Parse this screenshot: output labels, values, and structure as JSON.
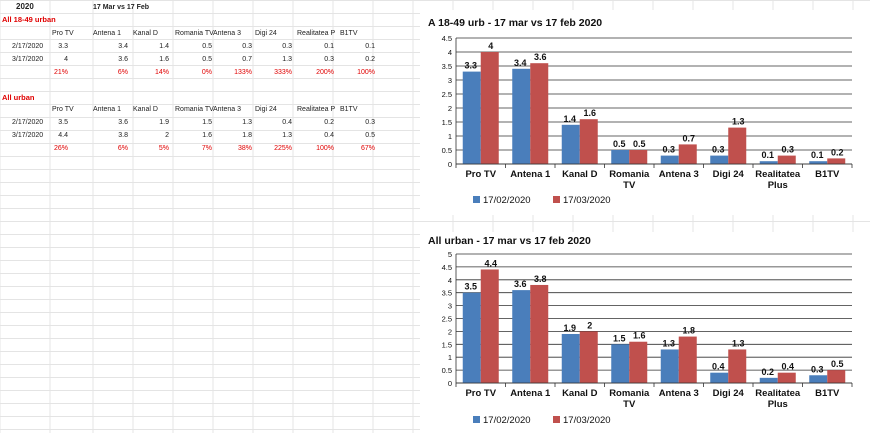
{
  "sheet": {
    "year": "2020",
    "period": "17 Mar vs 17 Feb",
    "sections": [
      {
        "title": "All 18-49 urban",
        "headers": [
          "Pro TV",
          "Antena 1",
          "Kanal D",
          "Romania TV",
          "Antena 3",
          "Digi 24",
          "Realitatea P",
          "B1TV"
        ],
        "rows": [
          {
            "date": "2/17/2020",
            "values": [
              "3.3",
              "3.4",
              "1.4",
              "0.5",
              "0.3",
              "0.3",
              "0.1",
              "0.1"
            ]
          },
          {
            "date": "3/17/2020",
            "values": [
              "4",
              "3.6",
              "1.6",
              "0.5",
              "0.7",
              "1.3",
              "0.3",
              "0.2"
            ]
          }
        ],
        "pct": [
          "21%",
          "6%",
          "14%",
          "0%",
          "133%",
          "333%",
          "200%",
          "100%"
        ]
      },
      {
        "title": "All urban",
        "headers": [
          "Pro TV",
          "Antena 1",
          "Kanal D",
          "Romania TV",
          "Antena 3",
          "Digi 24",
          "Realitatea P",
          "B1TV"
        ],
        "rows": [
          {
            "date": "2/17/2020",
            "values": [
              "3.5",
              "3.6",
              "1.9",
              "1.5",
              "1.3",
              "0.4",
              "0.2",
              "0.3"
            ]
          },
          {
            "date": "3/17/2020",
            "values": [
              "4.4",
              "3.8",
              "2",
              "1.6",
              "1.8",
              "1.3",
              "0.4",
              "0.5"
            ]
          }
        ],
        "pct": [
          "26%",
          "6%",
          "5%",
          "7%",
          "38%",
          "225%",
          "100%",
          "67%"
        ]
      }
    ]
  },
  "chart_data": [
    {
      "type": "bar",
      "title": "A 18-49 urb - 17 mar vs 17 feb 2020",
      "categories": [
        "Pro TV",
        "Antena 1",
        "Kanal D",
        "Romania TV",
        "Antena 3",
        "Digi 24",
        "Realitatea Plus",
        "B1TV"
      ],
      "category_lines": [
        [
          "Pro TV"
        ],
        [
          "Antena 1"
        ],
        [
          "Kanal D"
        ],
        [
          "Romania",
          "TV"
        ],
        [
          "Antena 3"
        ],
        [
          "Digi 24"
        ],
        [
          "Realitatea",
          "Plus"
        ],
        [
          "B1TV"
        ]
      ],
      "series": [
        {
          "name": "17/02/2020",
          "color": "#4a7ebb",
          "values": [
            3.3,
            3.4,
            1.4,
            0.5,
            0.3,
            0.3,
            0.1,
            0.1
          ],
          "labels": [
            "3.3",
            "3.4",
            "1.4",
            "0.5",
            "0.3",
            "0.3",
            "0.1",
            "0.1"
          ]
        },
        {
          "name": "17/03/2020",
          "color": "#c0504d",
          "values": [
            4,
            3.6,
            1.6,
            0.5,
            0.7,
            1.3,
            0.3,
            0.2
          ],
          "labels": [
            "4",
            "3.6",
            "1.6",
            "0.5",
            "0.7",
            "1.3",
            "0.3",
            "0.2"
          ]
        }
      ],
      "ylim": [
        0,
        4.5
      ],
      "yticks": [
        "0",
        "0.5",
        "1",
        "1.5",
        "2",
        "2.5",
        "3",
        "3.5",
        "4",
        "4.5"
      ],
      "grid": true,
      "legend": "bottom"
    },
    {
      "type": "bar",
      "title": "All urban - 17 mar vs 17 feb 2020",
      "categories": [
        "Pro TV",
        "Antena 1",
        "Kanal D",
        "Romania TV",
        "Antena 3",
        "Digi 24",
        "Realitatea Plus",
        "B1TV"
      ],
      "category_lines": [
        [
          "Pro TV"
        ],
        [
          "Antena 1"
        ],
        [
          "Kanal D"
        ],
        [
          "Romania",
          "TV"
        ],
        [
          "Antena 3"
        ],
        [
          "Digi 24"
        ],
        [
          "Realitatea",
          "Plus"
        ],
        [
          "B1TV"
        ]
      ],
      "series": [
        {
          "name": "17/02/2020",
          "color": "#4a7ebb",
          "values": [
            3.5,
            3.6,
            1.9,
            1.5,
            1.3,
            0.4,
            0.2,
            0.3
          ],
          "labels": [
            "3.5",
            "3.6",
            "1.9",
            "1.5",
            "1.3",
            "0.4",
            "0.2",
            "0.3"
          ]
        },
        {
          "name": "17/03/2020",
          "color": "#c0504d",
          "values": [
            4.4,
            3.8,
            2,
            1.6,
            1.8,
            1.3,
            0.4,
            0.5
          ],
          "labels": [
            "4.4",
            "3.8",
            "2",
            "1.6",
            "1.8",
            "1.3",
            "0.4",
            "0.5"
          ]
        }
      ],
      "ylim": [
        0,
        5
      ],
      "yticks": [
        "0",
        "0.5",
        "1",
        "1.5",
        "2",
        "2.5",
        "3",
        "3.5",
        "4",
        "4.5",
        "5"
      ],
      "grid": true,
      "legend": "bottom"
    }
  ]
}
